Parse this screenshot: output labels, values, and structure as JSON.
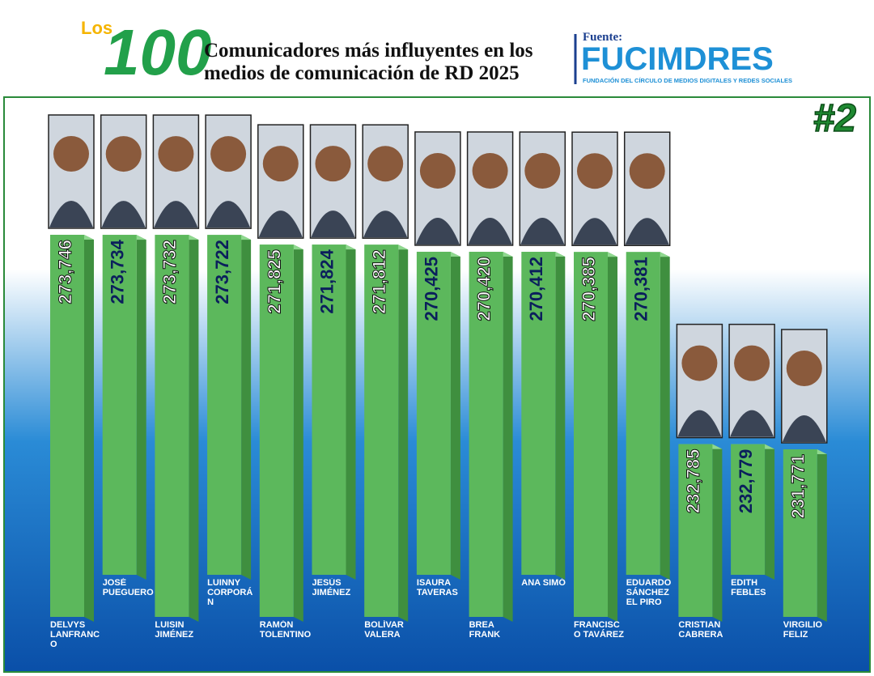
{
  "header": {
    "los": "Los",
    "hundred": "100",
    "title_line1": "Comunicadores más influyentes en los",
    "title_line2": "medios de comunicación de RD 2025",
    "source_label": "Fuente:",
    "source_name": "FUCIMDRES",
    "source_subtitle": "FUNDACIÓN DEL CÍRCULO DE MEDIOS DIGITALES Y REDES SOCIALES"
  },
  "chart_data": {
    "type": "bar",
    "badge": "#2",
    "color": "#5cb85c",
    "categories": [
      "DELVYS LANFRANCO",
      "JOSÉ PUEGUERO",
      "LUISIN JIMÉNEZ",
      "LUINNY CORPORÁN",
      "RAMÓN TOLENTINO",
      "JESÚS JIMÉNEZ",
      "BOLÍVAR VALERA",
      "ISAURA TAVERAS",
      "BREA FRANK",
      "ANA SIMÓ",
      "FRANCISCO TAVÁREZ",
      "EDUARDO SÁNCHEZ EL PIRO",
      "CRISTIAN CABRERA",
      "EDITH FEBLES",
      "VIRGILIO FELIZ"
    ],
    "values": [
      273746,
      273734,
      273732,
      273722,
      271825,
      271824,
      271812,
      270425,
      270420,
      270412,
      270385,
      270381,
      232785,
      232779,
      231771
    ],
    "value_labels": [
      "273,746",
      "273,734",
      "273,732",
      "273,722",
      "271,825",
      "271,824",
      "271,812",
      "270,425",
      "270,420",
      "270,412",
      "270,385",
      "270,381",
      "232,785",
      "232,779",
      "231,771"
    ]
  }
}
